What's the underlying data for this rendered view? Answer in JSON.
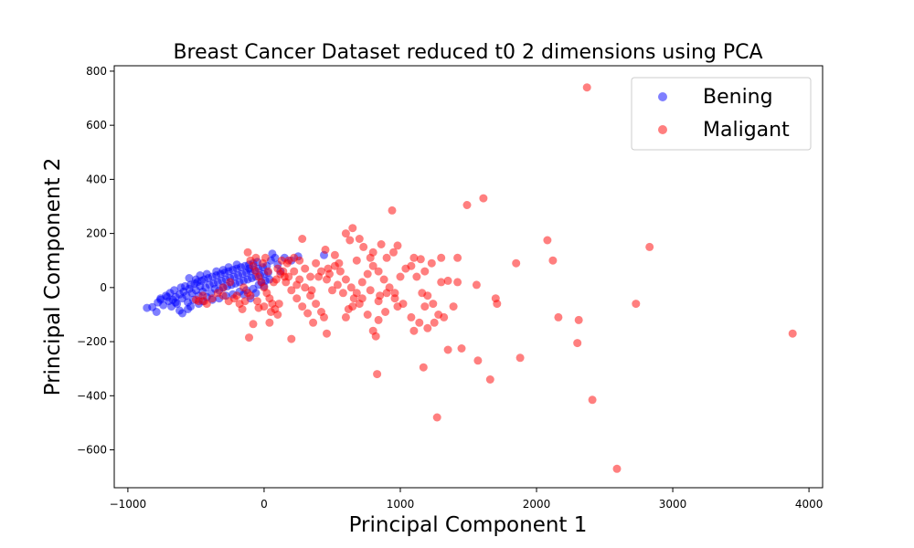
{
  "chart_data": {
    "type": "scatter",
    "title": "Breast Cancer Dataset reduced t0 2 dimensions using PCA",
    "xlabel": "Principal Component 1",
    "ylabel": "Principal Component 2",
    "xlim": [
      -1100,
      4100
    ],
    "ylim": [
      -740,
      820
    ],
    "x_ticks": [
      -1000,
      0,
      1000,
      2000,
      3000,
      4000
    ],
    "x_tick_labels": [
      "−1000",
      "0",
      "1000",
      "2000",
      "3000",
      "4000"
    ],
    "y_ticks": [
      -600,
      -400,
      -200,
      0,
      200,
      400,
      600,
      800
    ],
    "y_tick_labels": [
      "−600",
      "−400",
      "−200",
      "0",
      "200",
      "400",
      "600",
      "800"
    ],
    "grid": false,
    "legend_position": "top-right",
    "series": [
      {
        "name": "Bening",
        "color": "#0000ff",
        "points": [
          [
            -860,
            -75
          ],
          [
            -820,
            -72
          ],
          [
            -790,
            -90
          ],
          [
            -780,
            -55
          ],
          [
            -760,
            -40
          ],
          [
            -740,
            -65
          ],
          [
            -720,
            -30
          ],
          [
            -700,
            -50
          ],
          [
            -690,
            -20
          ],
          [
            -670,
            -45
          ],
          [
            -660,
            -10
          ],
          [
            -650,
            -35
          ],
          [
            -640,
            -60
          ],
          [
            -620,
            -25
          ],
          [
            -610,
            0
          ],
          [
            -600,
            -40
          ],
          [
            -590,
            -15
          ],
          [
            -580,
            5
          ],
          [
            -570,
            -30
          ],
          [
            -560,
            -55
          ],
          [
            -550,
            -5
          ],
          [
            -540,
            10
          ],
          [
            -530,
            -20
          ],
          [
            -520,
            -45
          ],
          [
            -510,
            15
          ],
          [
            -500,
            -10
          ],
          [
            -490,
            20
          ],
          [
            -480,
            -30
          ],
          [
            -470,
            5
          ],
          [
            -460,
            25
          ],
          [
            -450,
            -15
          ],
          [
            -440,
            30
          ],
          [
            -430,
            0
          ],
          [
            -420,
            -35
          ],
          [
            -410,
            35
          ],
          [
            -400,
            10
          ],
          [
            -390,
            -20
          ],
          [
            -380,
            40
          ],
          [
            -370,
            15
          ],
          [
            -360,
            -5
          ],
          [
            -350,
            45
          ],
          [
            -340,
            20
          ],
          [
            -330,
            -10
          ],
          [
            -320,
            50
          ],
          [
            -310,
            25
          ],
          [
            -300,
            0
          ],
          [
            -290,
            55
          ],
          [
            -280,
            30
          ],
          [
            -270,
            5
          ],
          [
            -260,
            60
          ],
          [
            -250,
            35
          ],
          [
            -240,
            10
          ],
          [
            -230,
            65
          ],
          [
            -220,
            40
          ],
          [
            -210,
            15
          ],
          [
            -200,
            70
          ],
          [
            -190,
            45
          ],
          [
            -180,
            20
          ],
          [
            -170,
            75
          ],
          [
            -160,
            50
          ],
          [
            -150,
            25
          ],
          [
            -140,
            80
          ],
          [
            -130,
            55
          ],
          [
            -120,
            30
          ],
          [
            -110,
            85
          ],
          [
            -100,
            60
          ],
          [
            -90,
            35
          ],
          [
            -80,
            90
          ],
          [
            -70,
            65
          ],
          [
            -60,
            40
          ],
          [
            -50,
            95
          ],
          [
            -40,
            70
          ],
          [
            -30,
            45
          ],
          [
            -20,
            20
          ],
          [
            -10,
            75
          ],
          [
            0,
            50
          ],
          [
            10,
            25
          ],
          [
            20,
            80
          ],
          [
            30,
            55
          ],
          [
            40,
            30
          ],
          [
            50,
            100
          ],
          [
            60,
            125
          ],
          [
            80,
            110
          ],
          [
            100,
            85
          ],
          [
            120,
            60
          ],
          [
            150,
            110
          ],
          [
            200,
            100
          ],
          [
            250,
            115
          ],
          [
            440,
            120
          ],
          [
            -600,
            -95
          ],
          [
            -560,
            -80
          ],
          [
            -480,
            -60
          ],
          [
            -380,
            -45
          ],
          [
            -280,
            -30
          ],
          [
            -180,
            -15
          ],
          [
            -80,
            -5
          ],
          [
            -40,
            10
          ],
          [
            -500,
            30
          ],
          [
            -420,
            50
          ],
          [
            -350,
            60
          ],
          [
            -260,
            75
          ],
          [
            -150,
            -25
          ],
          [
            -100,
            -40
          ],
          [
            -60,
            -20
          ],
          [
            -680,
            -70
          ],
          [
            -620,
            -85
          ],
          [
            -540,
            -70
          ],
          [
            -450,
            -50
          ],
          [
            -330,
            -40
          ],
          [
            -230,
            -25
          ],
          [
            -130,
            -10
          ],
          [
            0,
            5
          ],
          [
            -550,
            35
          ],
          [
            -470,
            45
          ],
          [
            -300,
            65
          ],
          [
            -200,
            85
          ],
          [
            -110,
            70
          ],
          [
            -760,
            -45
          ],
          [
            -710,
            -35
          ],
          [
            -650,
            -55
          ]
        ]
      },
      {
        "name": "Maligant",
        "color": "#ff0000",
        "points": [
          [
            2370,
            740
          ],
          [
            1610,
            330
          ],
          [
            1490,
            305
          ],
          [
            940,
            285
          ],
          [
            2830,
            150
          ],
          [
            2080,
            175
          ],
          [
            2120,
            100
          ],
          [
            1850,
            90
          ],
          [
            650,
            220
          ],
          [
            600,
            200
          ],
          [
            630,
            175
          ],
          [
            700,
            180
          ],
          [
            280,
            180
          ],
          [
            450,
            140
          ],
          [
            520,
            120
          ],
          [
            800,
            130
          ],
          [
            860,
            160
          ],
          [
            980,
            155
          ],
          [
            1100,
            110
          ],
          [
            1150,
            105
          ],
          [
            1420,
            110
          ],
          [
            1300,
            20
          ],
          [
            1350,
            25
          ],
          [
            1420,
            20
          ],
          [
            1560,
            10
          ],
          [
            1700,
            -40
          ],
          [
            1710,
            -60
          ],
          [
            2730,
            -60
          ],
          [
            2160,
            -110
          ],
          [
            2310,
            -120
          ],
          [
            2300,
            -205
          ],
          [
            3880,
            -170
          ],
          [
            1880,
            -260
          ],
          [
            1570,
            -270
          ],
          [
            1660,
            -340
          ],
          [
            1450,
            -225
          ],
          [
            1350,
            -230
          ],
          [
            1170,
            -295
          ],
          [
            1270,
            -480
          ],
          [
            2410,
            -415
          ],
          [
            2590,
            -670
          ],
          [
            830,
            -320
          ],
          [
            -120,
            130
          ],
          [
            -100,
            100
          ],
          [
            -80,
            80
          ],
          [
            -60,
            60
          ],
          [
            -40,
            40
          ],
          [
            -20,
            20
          ],
          [
            0,
            0
          ],
          [
            20,
            -20
          ],
          [
            40,
            -40
          ],
          [
            60,
            -60
          ],
          [
            80,
            -80
          ],
          [
            100,
            -100
          ],
          [
            150,
            40
          ],
          [
            200,
            -190
          ],
          [
            -110,
            -185
          ],
          [
            -80,
            -135
          ],
          [
            -40,
            -75
          ],
          [
            40,
            -130
          ],
          [
            100,
            70
          ],
          [
            130,
            100
          ],
          [
            170,
            90
          ],
          [
            220,
            60
          ],
          [
            260,
            30
          ],
          [
            300,
            0
          ],
          [
            340,
            -30
          ],
          [
            380,
            -60
          ],
          [
            420,
            -90
          ],
          [
            440,
            -110
          ],
          [
            460,
            -170
          ],
          [
            360,
            -130
          ],
          [
            320,
            -95
          ],
          [
            280,
            -70
          ],
          [
            240,
            -40
          ],
          [
            200,
            -10
          ],
          [
            160,
            20
          ],
          [
            120,
            50
          ],
          [
            480,
            50
          ],
          [
            520,
            80
          ],
          [
            560,
            60
          ],
          [
            600,
            30
          ],
          [
            640,
            0
          ],
          [
            680,
            -20
          ],
          [
            720,
            20
          ],
          [
            760,
            50
          ],
          [
            800,
            80
          ],
          [
            840,
            60
          ],
          [
            880,
            30
          ],
          [
            920,
            0
          ],
          [
            960,
            -20
          ],
          [
            1000,
            40
          ],
          [
            1040,
            70
          ],
          [
            1080,
            80
          ],
          [
            1120,
            40
          ],
          [
            1160,
            -20
          ],
          [
            1200,
            -30
          ],
          [
            1240,
            -60
          ],
          [
            1280,
            -100
          ],
          [
            1180,
            -70
          ],
          [
            1140,
            -130
          ],
          [
            1080,
            -110
          ],
          [
            1020,
            -60
          ],
          [
            960,
            -40
          ],
          [
            900,
            -20
          ],
          [
            840,
            -50
          ],
          [
            800,
            -160
          ],
          [
            820,
            -180
          ],
          [
            840,
            -120
          ],
          [
            760,
            -100
          ],
          [
            700,
            -60
          ],
          [
            660,
            -40
          ],
          [
            620,
            -80
          ],
          [
            580,
            -20
          ],
          [
            540,
            10
          ],
          [
            500,
            -10
          ],
          [
            460,
            30
          ],
          [
            420,
            60
          ],
          [
            380,
            90
          ],
          [
            340,
            40
          ],
          [
            300,
            70
          ],
          [
            260,
            100
          ],
          [
            220,
            110
          ],
          [
            180,
            100
          ],
          [
            140,
            60
          ],
          [
            90,
            30
          ],
          [
            -200,
            -30
          ],
          [
            -180,
            -60
          ],
          [
            -160,
            -80
          ],
          [
            -140,
            -50
          ],
          [
            -120,
            -20
          ],
          [
            -220,
            -40
          ],
          [
            -260,
            -50
          ],
          [
            -300,
            -30
          ],
          [
            -340,
            -20
          ],
          [
            -380,
            -40
          ],
          [
            -420,
            -60
          ],
          [
            -450,
            -30
          ],
          [
            -440,
            -50
          ],
          [
            -480,
            -50
          ],
          [
            -500,
            -45
          ],
          [
            -300,
            0
          ],
          [
            -250,
            20
          ],
          [
            -150,
            0
          ],
          [
            -100,
            -30
          ],
          [
            -50,
            -50
          ],
          [
            0,
            -70
          ],
          [
            50,
            -90
          ],
          [
            110,
            -60
          ],
          [
            70,
            20
          ],
          [
            30,
            60
          ],
          [
            -10,
            90
          ],
          [
            -60,
            110
          ],
          [
            10,
            110
          ],
          [
            180,
            40
          ],
          [
            240,
            10
          ],
          [
            1300,
            110
          ],
          [
            1230,
            90
          ],
          [
            1180,
            60
          ],
          [
            900,
            110
          ],
          [
            950,
            130
          ],
          [
            730,
            150
          ],
          [
            780,
            110
          ],
          [
            680,
            100
          ],
          [
            550,
            90
          ],
          [
            470,
            70
          ],
          [
            400,
            40
          ],
          [
            350,
            -10
          ],
          [
            1390,
            -70
          ],
          [
            1320,
            -110
          ],
          [
            1250,
            -130
          ],
          [
            1200,
            -150
          ],
          [
            1100,
            -160
          ],
          [
            980,
            -70
          ],
          [
            890,
            -90
          ],
          [
            850,
            -30
          ],
          [
            780,
            -10
          ],
          [
            720,
            -40
          ],
          [
            650,
            -70
          ],
          [
            600,
            -110
          ]
        ]
      }
    ]
  }
}
